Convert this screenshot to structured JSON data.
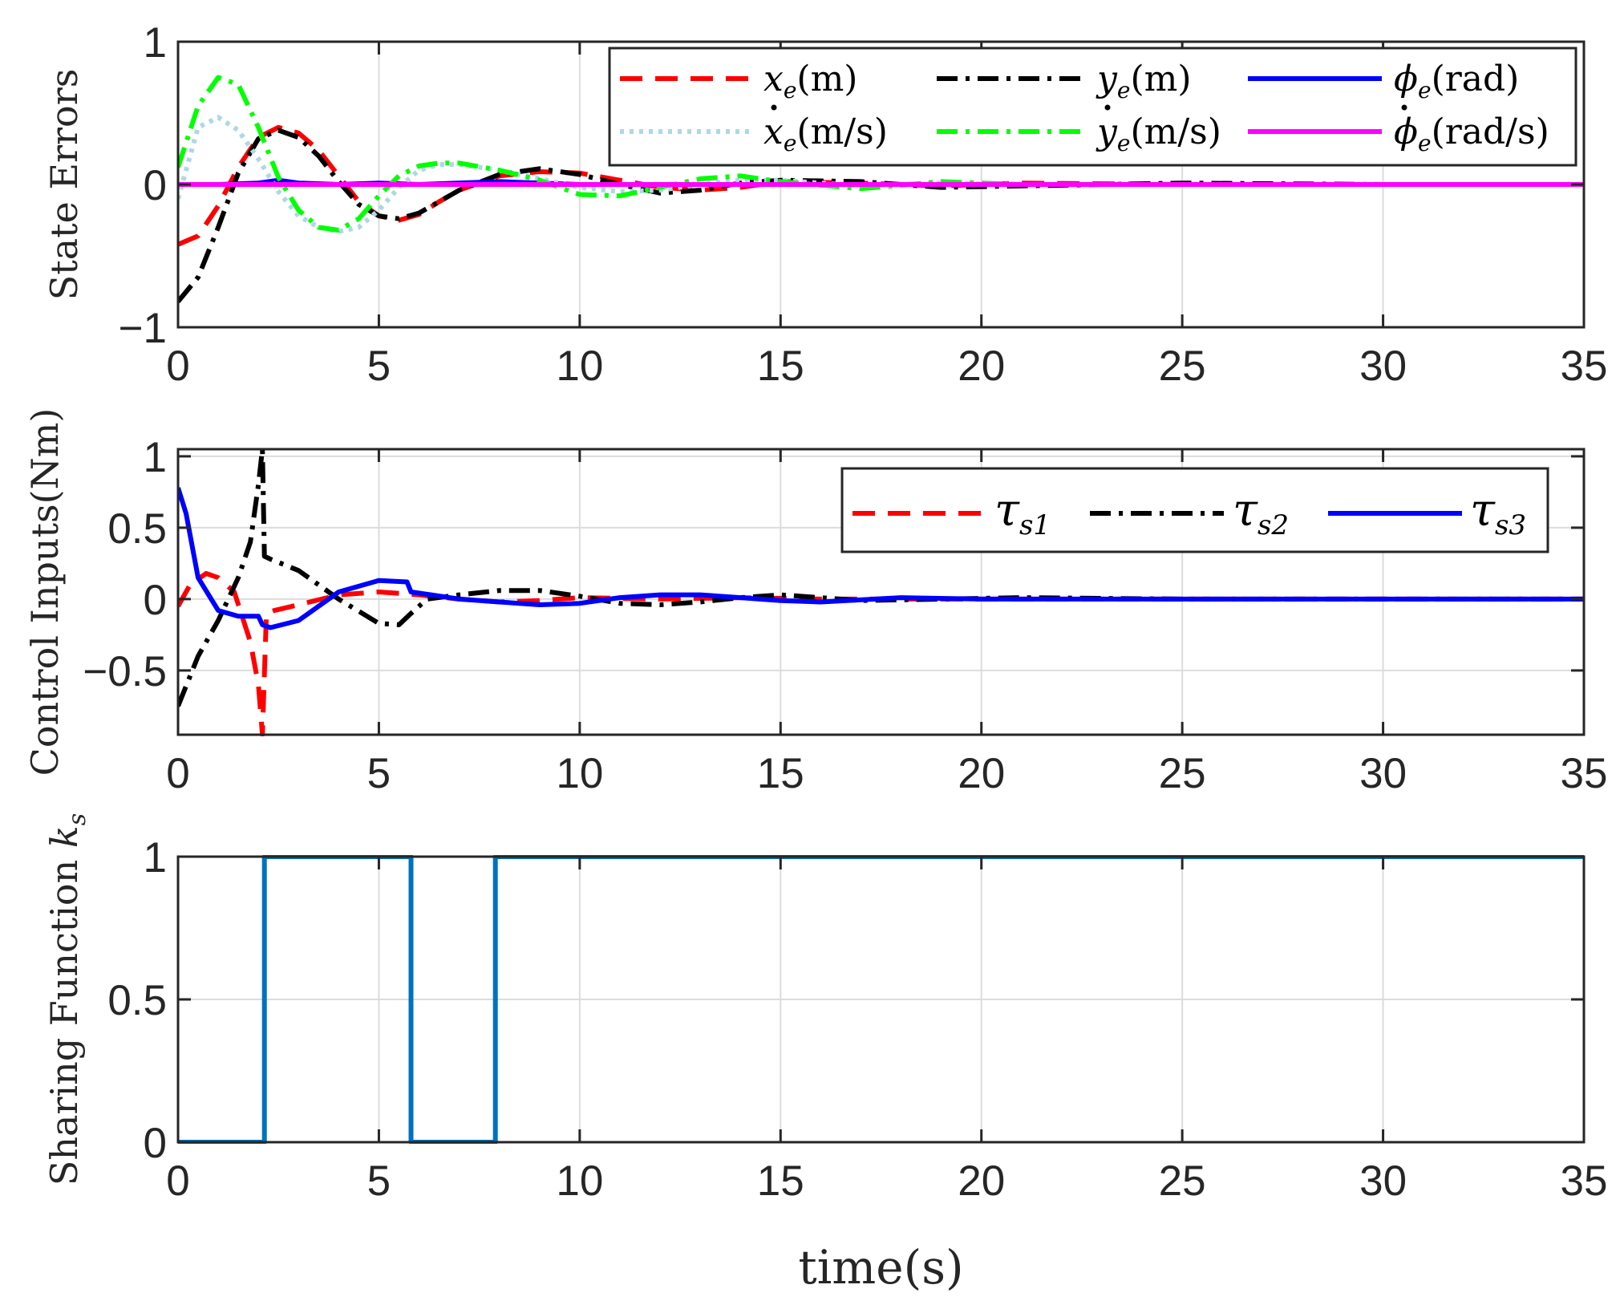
{
  "chart_data": [
    {
      "type": "line",
      "name": "state-errors",
      "ylabel": "State Errors",
      "xlabel": "",
      "xlim": [
        0,
        35
      ],
      "ylim": [
        -1,
        1
      ],
      "xticks": [
        "0",
        "5",
        "10",
        "15",
        "20",
        "25",
        "30",
        "35"
      ],
      "yticks": [
        {
          "v": -1,
          "t": "−1"
        },
        {
          "v": 0,
          "t": "0"
        },
        {
          "v": 1,
          "t": "1"
        }
      ],
      "grid": true,
      "legend_position": "top-right",
      "legend_columns": 3,
      "series": [
        {
          "name": "x_e(m)",
          "label": "x",
          "sub": "e",
          "unit": "(m)",
          "dot": false,
          "color": "#ff0000",
          "dash": "28,16",
          "x": [
            0,
            0.5,
            1,
            1.5,
            2,
            2.5,
            3,
            3.5,
            4,
            4.5,
            5,
            5.5,
            6,
            6.5,
            7,
            8,
            9,
            10,
            11,
            12,
            13,
            14,
            15,
            17,
            19,
            21,
            25,
            30,
            35
          ],
          "y": [
            -0.42,
            -0.36,
            -0.15,
            0.12,
            0.33,
            0.4,
            0.36,
            0.24,
            0.06,
            -0.12,
            -0.22,
            -0.25,
            -0.21,
            -0.12,
            -0.04,
            0.06,
            0.09,
            0.08,
            0.03,
            -0.02,
            -0.04,
            -0.02,
            0.02,
            0.01,
            -0.01,
            0.01,
            0,
            0,
            0
          ]
        },
        {
          "name": "y_e(m)",
          "label": "y",
          "sub": "e",
          "unit": "(m)",
          "dot": false,
          "color": "#000000",
          "dash": "26,10,5,10",
          "x": [
            0,
            0.5,
            1,
            1.5,
            2,
            2.5,
            3,
            3.5,
            4,
            4.5,
            5,
            5.5,
            6,
            6.5,
            7,
            8,
            9,
            10,
            11,
            12,
            13,
            14,
            15,
            17,
            19,
            21,
            25,
            30,
            35
          ],
          "y": [
            -0.82,
            -0.65,
            -0.3,
            0.08,
            0.32,
            0.38,
            0.33,
            0.2,
            0.02,
            -0.14,
            -0.22,
            -0.24,
            -0.2,
            -0.12,
            -0.04,
            0.07,
            0.11,
            0.07,
            0.0,
            -0.06,
            -0.04,
            0.01,
            0.03,
            0.02,
            -0.02,
            -0.01,
            0.01,
            0,
            0
          ]
        },
        {
          "name": "phi_e(rad)",
          "label": "ϕ",
          "sub": "e",
          "unit": "(rad)",
          "dot": false,
          "color": "#0000ff",
          "dash": "",
          "x": [
            0,
            1,
            2,
            2.5,
            3,
            4,
            5,
            6,
            8,
            10,
            15,
            20,
            35
          ],
          "y": [
            0,
            0,
            0.01,
            0.03,
            0.01,
            0.0,
            0.01,
            0.0,
            0.02,
            0.0,
            0.0,
            0.0,
            0
          ]
        },
        {
          "name": "dot x_e(m/s)",
          "label": "x",
          "sub": "e",
          "unit": "(m/s)",
          "dot": true,
          "color": "#add8e6",
          "dash": "5,7",
          "x": [
            0,
            0.5,
            1,
            1.5,
            2,
            2.5,
            3,
            3.5,
            4,
            4.5,
            5,
            5.5,
            6,
            6.5,
            7,
            8,
            9,
            10,
            11,
            12,
            13,
            14,
            15,
            17,
            19,
            21,
            25,
            30,
            35
          ],
          "y": [
            -0.1,
            0.4,
            0.47,
            0.38,
            0.18,
            -0.05,
            -0.22,
            -0.3,
            -0.33,
            -0.3,
            -0.18,
            -0.02,
            0.1,
            0.14,
            0.14,
            0.1,
            0.04,
            -0.02,
            -0.05,
            -0.04,
            0.0,
            0.03,
            0.03,
            -0.01,
            0.01,
            0.0,
            0,
            0,
            0
          ]
        },
        {
          "name": "dot y_e(m/s)",
          "label": "y",
          "sub": "e",
          "unit": "(m/s)",
          "dot": true,
          "color": "#00ff00",
          "dash": "26,10,5,10",
          "x": [
            0,
            0.5,
            1,
            1.5,
            2,
            2.5,
            3,
            3.5,
            4,
            4.5,
            5,
            5.5,
            6,
            6.5,
            7,
            8,
            9,
            10,
            11,
            12,
            13,
            14,
            15,
            17,
            19,
            21,
            25,
            30,
            35
          ],
          "y": [
            0.12,
            0.55,
            0.75,
            0.7,
            0.4,
            0.05,
            -0.18,
            -0.3,
            -0.32,
            -0.24,
            -0.08,
            0.06,
            0.13,
            0.15,
            0.15,
            0.1,
            0.03,
            -0.07,
            -0.08,
            -0.02,
            0.04,
            0.06,
            0.02,
            -0.03,
            0.02,
            0.0,
            0,
            0,
            0
          ]
        },
        {
          "name": "dot phi_e(rad/s)",
          "label": "ϕ",
          "sub": "e",
          "unit": "(rad/s)",
          "dot": true,
          "color": "#ff00ff",
          "dash": "",
          "x": [
            0,
            35
          ],
          "y": [
            0,
            0
          ]
        }
      ]
    },
    {
      "type": "line",
      "name": "control-inputs",
      "ylabel": "Control Inputs(Nm)",
      "xlabel": "",
      "xlim": [
        0,
        35
      ],
      "ylim": [
        -0.95,
        1.05
      ],
      "xticks": [
        "0",
        "5",
        "10",
        "15",
        "20",
        "25",
        "30",
        "35"
      ],
      "yticks": [
        {
          "v": -0.5,
          "t": "−0.5"
        },
        {
          "v": 0,
          "t": "0"
        },
        {
          "v": 0.5,
          "t": "0.5"
        },
        {
          "v": 1,
          "t": "1"
        }
      ],
      "grid": true,
      "legend_position": "top-right",
      "legend_columns": 3,
      "series": [
        {
          "name": "tau_s1",
          "label": "τ",
          "sub": "s1",
          "unit": "",
          "dot": false,
          "color": "#ff0000",
          "dash": "28,16",
          "x": [
            0,
            0.3,
            0.7,
            1.0,
            1.4,
            1.8,
            2.0,
            2.1,
            2.2,
            2.4,
            3,
            4,
            5,
            6,
            7,
            8,
            9,
            10,
            12,
            14,
            16,
            20,
            35
          ],
          "y": [
            -0.05,
            0.1,
            0.18,
            0.15,
            0.05,
            -0.3,
            -0.6,
            -0.95,
            -0.1,
            -0.08,
            -0.04,
            0.03,
            0.05,
            0.03,
            0.0,
            -0.02,
            -0.01,
            0.01,
            0.0,
            0.01,
            0.0,
            0,
            0
          ]
        },
        {
          "name": "tau_s2",
          "label": "τ",
          "sub": "s2",
          "unit": "",
          "dot": false,
          "color": "#000000",
          "dash": "26,10,5,10",
          "x": [
            0,
            0.5,
            1.0,
            1.5,
            1.8,
            2.0,
            2.1,
            2.15,
            2.3,
            3,
            4,
            5,
            5.5,
            5.8,
            6.2,
            7,
            8,
            9,
            10,
            11,
            12,
            13,
            14,
            15,
            17,
            19,
            21,
            25,
            35
          ],
          "y": [
            -0.75,
            -0.4,
            -0.15,
            0.15,
            0.4,
            0.8,
            1.05,
            0.3,
            0.28,
            0.2,
            0.0,
            -0.17,
            -0.18,
            -0.1,
            0.0,
            0.03,
            0.06,
            0.06,
            0.02,
            -0.03,
            -0.04,
            -0.02,
            0.01,
            0.03,
            -0.01,
            0.0,
            0.01,
            0,
            0
          ]
        },
        {
          "name": "tau_s3",
          "label": "τ",
          "sub": "s3",
          "unit": "",
          "dot": false,
          "color": "#0000ff",
          "dash": "",
          "x": [
            0,
            0.2,
            0.5,
            1.0,
            1.5,
            2.0,
            2.1,
            2.3,
            3,
            4,
            5,
            5.7,
            5.8,
            6.3,
            7,
            8,
            9,
            10,
            11,
            12,
            13,
            14,
            15,
            16,
            18,
            20,
            25,
            35
          ],
          "y": [
            0.78,
            0.6,
            0.15,
            -0.08,
            -0.12,
            -0.12,
            -0.18,
            -0.2,
            -0.15,
            0.05,
            0.13,
            0.12,
            0.05,
            0.03,
            0.0,
            -0.02,
            -0.04,
            -0.03,
            0.01,
            0.03,
            0.03,
            0.01,
            -0.01,
            -0.02,
            0.01,
            0.0,
            0,
            0
          ]
        }
      ]
    },
    {
      "type": "line",
      "name": "sharing-function",
      "ylabel": "Sharing Function",
      "ylabel_symbol": "k",
      "ylabel_sub": "s",
      "xlabel": "time(s)",
      "xlim": [
        0,
        35
      ],
      "ylim": [
        0,
        1
      ],
      "xticks": [
        "0",
        "5",
        "10",
        "15",
        "20",
        "25",
        "30",
        "35"
      ],
      "yticks": [
        {
          "v": 0,
          "t": "0"
        },
        {
          "v": 0.5,
          "t": "0.5"
        },
        {
          "v": 1,
          "t": "1"
        }
      ],
      "grid": true,
      "series": [
        {
          "name": "k_s",
          "color": "#0072bd",
          "dash": "",
          "x": [
            0,
            2.15,
            2.15,
            5.8,
            5.8,
            7.9,
            7.9,
            35
          ],
          "y": [
            0,
            0,
            1,
            1,
            0,
            0,
            1,
            1
          ]
        }
      ]
    }
  ]
}
